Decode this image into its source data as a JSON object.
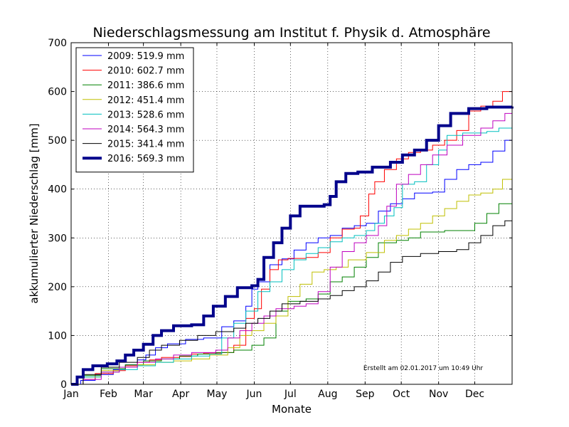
{
  "chart_data": {
    "type": "line",
    "title": "Niederschlagsmessung am Institut f. Physik d. Atmosphäre",
    "xlabel": "Monate",
    "ylabel": "akkumulierter Niederschlag [mm]",
    "xlim": [
      0,
      366
    ],
    "ylim": [
      0,
      700
    ],
    "yticks": [
      0,
      100,
      200,
      300,
      400,
      500,
      600,
      700
    ],
    "month_ticks": [
      {
        "label": "Jan",
        "day": 0
      },
      {
        "label": "Feb",
        "day": 31
      },
      {
        "label": "Mar",
        "day": 60
      },
      {
        "label": "Apr",
        "day": 91
      },
      {
        "label": "May",
        "day": 121
      },
      {
        "label": "Jun",
        "day": 152
      },
      {
        "label": "Jul",
        "day": 182
      },
      {
        "label": "Aug",
        "day": 213
      },
      {
        "label": "Sep",
        "day": 244
      },
      {
        "label": "Oct",
        "day": 274
      },
      {
        "label": "Nov",
        "day": 305
      },
      {
        "label": "Dec",
        "day": 335
      }
    ],
    "grid": true,
    "grid_style": "dotted",
    "legend_position": "top-left",
    "annotation": "Erstellt am 02.01.2017 um 10:49 Uhr",
    "series": [
      {
        "name": "2009: 519.9 mm",
        "color": "#0000ff",
        "width": 1,
        "points": [
          [
            0,
            0
          ],
          [
            8,
            8
          ],
          [
            20,
            20
          ],
          [
            35,
            30
          ],
          [
            45,
            40
          ],
          [
            55,
            50
          ],
          [
            62,
            60
          ],
          [
            70,
            75
          ],
          [
            80,
            83
          ],
          [
            95,
            92
          ],
          [
            110,
            95
          ],
          [
            125,
            118
          ],
          [
            135,
            130
          ],
          [
            145,
            160
          ],
          [
            150,
            195
          ],
          [
            155,
            210
          ],
          [
            165,
            245
          ],
          [
            175,
            257
          ],
          [
            185,
            275
          ],
          [
            195,
            290
          ],
          [
            205,
            300
          ],
          [
            215,
            305
          ],
          [
            225,
            320
          ],
          [
            235,
            325
          ],
          [
            245,
            330
          ],
          [
            255,
            355
          ],
          [
            265,
            370
          ],
          [
            275,
            380
          ],
          [
            285,
            392
          ],
          [
            300,
            394
          ],
          [
            310,
            420
          ],
          [
            320,
            440
          ],
          [
            330,
            450
          ],
          [
            340,
            455
          ],
          [
            350,
            478
          ],
          [
            360,
            500
          ],
          [
            366,
            520
          ]
        ]
      },
      {
        "name": "2010: 602.7 mm",
        "color": "#ff0000",
        "width": 1,
        "points": [
          [
            0,
            0
          ],
          [
            10,
            10
          ],
          [
            20,
            22
          ],
          [
            35,
            28
          ],
          [
            45,
            38
          ],
          [
            55,
            45
          ],
          [
            65,
            50
          ],
          [
            75,
            55
          ],
          [
            90,
            57
          ],
          [
            100,
            62
          ],
          [
            110,
            64
          ],
          [
            125,
            65
          ],
          [
            135,
            80
          ],
          [
            145,
            135
          ],
          [
            152,
            155
          ],
          [
            158,
            195
          ],
          [
            165,
            235
          ],
          [
            172,
            255
          ],
          [
            180,
            258
          ],
          [
            195,
            260
          ],
          [
            205,
            270
          ],
          [
            215,
            300
          ],
          [
            225,
            318
          ],
          [
            235,
            320
          ],
          [
            240,
            345
          ],
          [
            247,
            390
          ],
          [
            252,
            415
          ],
          [
            260,
            440
          ],
          [
            270,
            462
          ],
          [
            280,
            475
          ],
          [
            290,
            480
          ],
          [
            300,
            490
          ],
          [
            310,
            500
          ],
          [
            320,
            520
          ],
          [
            330,
            560
          ],
          [
            340,
            570
          ],
          [
            350,
            580
          ],
          [
            358,
            600
          ],
          [
            366,
            602.7
          ]
        ]
      },
      {
        "name": "2011: 386.6 mm",
        "color": "#008000",
        "width": 1,
        "points": [
          [
            0,
            0
          ],
          [
            10,
            18
          ],
          [
            25,
            32
          ],
          [
            45,
            40
          ],
          [
            60,
            48
          ],
          [
            75,
            52
          ],
          [
            90,
            58
          ],
          [
            105,
            62
          ],
          [
            120,
            65
          ],
          [
            135,
            70
          ],
          [
            150,
            80
          ],
          [
            160,
            95
          ],
          [
            170,
            150
          ],
          [
            180,
            170
          ],
          [
            195,
            175
          ],
          [
            205,
            185
          ],
          [
            215,
            210
          ],
          [
            225,
            220
          ],
          [
            235,
            240
          ],
          [
            245,
            260
          ],
          [
            255,
            290
          ],
          [
            270,
            295
          ],
          [
            280,
            300
          ],
          [
            290,
            312
          ],
          [
            310,
            315
          ],
          [
            325,
            315
          ],
          [
            335,
            330
          ],
          [
            345,
            350
          ],
          [
            355,
            370
          ],
          [
            366,
            386.6
          ]
        ]
      },
      {
        "name": "2012: 451.4 mm",
        "color": "#bfbf00",
        "width": 1,
        "points": [
          [
            0,
            0
          ],
          [
            10,
            15
          ],
          [
            25,
            28
          ],
          [
            40,
            35
          ],
          [
            55,
            40
          ],
          [
            70,
            45
          ],
          [
            85,
            48
          ],
          [
            100,
            52
          ],
          [
            115,
            60
          ],
          [
            130,
            75
          ],
          [
            140,
            100
          ],
          [
            150,
            110
          ],
          [
            160,
            125
          ],
          [
            170,
            140
          ],
          [
            180,
            180
          ],
          [
            190,
            205
          ],
          [
            200,
            230
          ],
          [
            210,
            235
          ],
          [
            220,
            240
          ],
          [
            230,
            255
          ],
          [
            245,
            270
          ],
          [
            260,
            295
          ],
          [
            270,
            305
          ],
          [
            280,
            318
          ],
          [
            290,
            330
          ],
          [
            300,
            345
          ],
          [
            310,
            360
          ],
          [
            320,
            375
          ],
          [
            330,
            388
          ],
          [
            340,
            392
          ],
          [
            350,
            400
          ],
          [
            358,
            420
          ],
          [
            366,
            451.4
          ]
        ]
      },
      {
        "name": "2013: 528.6 mm",
        "color": "#00bfbf",
        "width": 1,
        "points": [
          [
            0,
            0
          ],
          [
            10,
            15
          ],
          [
            25,
            25
          ],
          [
            40,
            30
          ],
          [
            55,
            38
          ],
          [
            70,
            45
          ],
          [
            85,
            52
          ],
          [
            100,
            58
          ],
          [
            115,
            62
          ],
          [
            125,
            95
          ],
          [
            135,
            125
          ],
          [
            145,
            150
          ],
          [
            155,
            190
          ],
          [
            165,
            210
          ],
          [
            175,
            235
          ],
          [
            185,
            255
          ],
          [
            195,
            268
          ],
          [
            205,
            280
          ],
          [
            215,
            292
          ],
          [
            225,
            300
          ],
          [
            235,
            305
          ],
          [
            245,
            315
          ],
          [
            252,
            330
          ],
          [
            260,
            345
          ],
          [
            268,
            362
          ],
          [
            275,
            410
          ],
          [
            285,
            415
          ],
          [
            295,
            450
          ],
          [
            305,
            480
          ],
          [
            312,
            510
          ],
          [
            325,
            515
          ],
          [
            345,
            518
          ],
          [
            355,
            525
          ],
          [
            366,
            528.6
          ]
        ]
      },
      {
        "name": "2014: 564.3 mm",
        "color": "#bf00bf",
        "width": 1,
        "points": [
          [
            0,
            0
          ],
          [
            10,
            10
          ],
          [
            25,
            25
          ],
          [
            40,
            35
          ],
          [
            55,
            45
          ],
          [
            70,
            52
          ],
          [
            85,
            60
          ],
          [
            100,
            65
          ],
          [
            120,
            70
          ],
          [
            130,
            95
          ],
          [
            140,
            110
          ],
          [
            150,
            125
          ],
          [
            160,
            140
          ],
          [
            170,
            155
          ],
          [
            185,
            160
          ],
          [
            195,
            165
          ],
          [
            205,
            190
          ],
          [
            215,
            240
          ],
          [
            225,
            272
          ],
          [
            235,
            290
          ],
          [
            245,
            305
          ],
          [
            255,
            325
          ],
          [
            262,
            365
          ],
          [
            270,
            410
          ],
          [
            280,
            430
          ],
          [
            290,
            450
          ],
          [
            300,
            470
          ],
          [
            312,
            490
          ],
          [
            325,
            510
          ],
          [
            340,
            525
          ],
          [
            350,
            540
          ],
          [
            360,
            555
          ],
          [
            366,
            564.3
          ]
        ]
      },
      {
        "name": "2015: 341.4 mm",
        "color": "#000000",
        "width": 1,
        "points": [
          [
            0,
            0
          ],
          [
            10,
            20
          ],
          [
            25,
            35
          ],
          [
            40,
            45
          ],
          [
            55,
            55
          ],
          [
            65,
            70
          ],
          [
            75,
            80
          ],
          [
            90,
            90
          ],
          [
            105,
            100
          ],
          [
            120,
            108
          ],
          [
            135,
            115
          ],
          [
            145,
            125
          ],
          [
            155,
            135
          ],
          [
            165,
            150
          ],
          [
            175,
            165
          ],
          [
            190,
            170
          ],
          [
            205,
            175
          ],
          [
            215,
            182
          ],
          [
            225,
            192
          ],
          [
            235,
            200
          ],
          [
            245,
            212
          ],
          [
            255,
            230
          ],
          [
            265,
            250
          ],
          [
            275,
            262
          ],
          [
            290,
            268
          ],
          [
            305,
            272
          ],
          [
            320,
            276
          ],
          [
            330,
            290
          ],
          [
            340,
            305
          ],
          [
            350,
            325
          ],
          [
            360,
            335
          ],
          [
            366,
            341.4
          ]
        ]
      },
      {
        "name": "2016: 569.3 mm",
        "color": "#00008b",
        "width": 4,
        "points": [
          [
            0,
            0
          ],
          [
            5,
            15
          ],
          [
            10,
            30
          ],
          [
            18,
            38
          ],
          [
            30,
            42
          ],
          [
            38,
            48
          ],
          [
            45,
            60
          ],
          [
            52,
            70
          ],
          [
            60,
            82
          ],
          [
            68,
            100
          ],
          [
            75,
            110
          ],
          [
            85,
            120
          ],
          [
            100,
            122
          ],
          [
            110,
            140
          ],
          [
            118,
            160
          ],
          [
            128,
            180
          ],
          [
            138,
            198
          ],
          [
            150,
            202
          ],
          [
            155,
            215
          ],
          [
            160,
            260
          ],
          [
            168,
            290
          ],
          [
            175,
            320
          ],
          [
            182,
            345
          ],
          [
            190,
            365
          ],
          [
            210,
            368
          ],
          [
            215,
            385
          ],
          [
            220,
            415
          ],
          [
            228,
            432
          ],
          [
            238,
            435
          ],
          [
            250,
            445
          ],
          [
            265,
            455
          ],
          [
            275,
            470
          ],
          [
            285,
            480
          ],
          [
            295,
            500
          ],
          [
            305,
            530
          ],
          [
            315,
            555
          ],
          [
            330,
            565
          ],
          [
            345,
            568
          ],
          [
            366,
            569.3
          ]
        ]
      }
    ]
  }
}
